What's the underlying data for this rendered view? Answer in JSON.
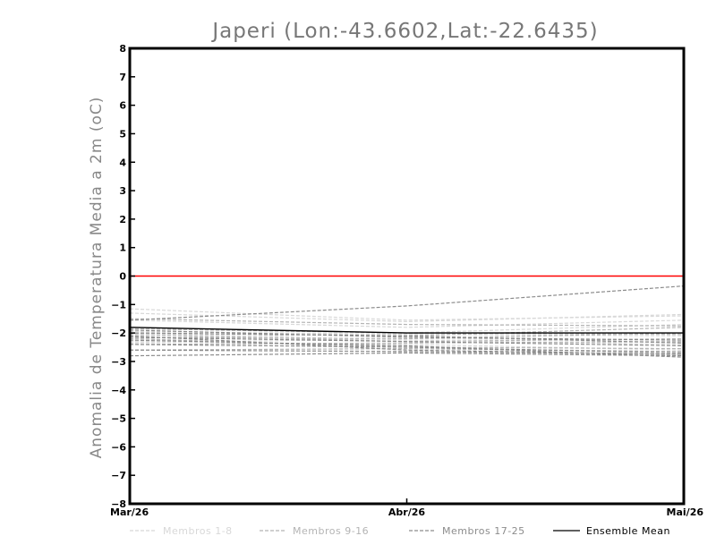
{
  "chart_data": {
    "type": "line",
    "title": "Japeri (Lon:-43.6602,Lat:-22.6435)",
    "ylabel": "Anomalia de Temperatura Media a 2m (oC)",
    "xlabel": "",
    "categories": [
      "Mar/26",
      "Abr/26",
      "Mai/26"
    ],
    "ylim": [
      -8,
      8
    ],
    "yticks": [
      -8,
      -7,
      -6,
      -5,
      -4,
      -3,
      -2,
      -1,
      0,
      1,
      2,
      3,
      4,
      5,
      6,
      7,
      8
    ],
    "zero_line_color": "#ff0000",
    "grid": false,
    "legend_position": "bottom",
    "legend": [
      {
        "label": "Membros 1-8",
        "color": "#d8d8d8",
        "dashed": true
      },
      {
        "label": "Membros 9-16",
        "color": "#b4b4b4",
        "dashed": true
      },
      {
        "label": "Membros 17-25",
        "color": "#8c8c8c",
        "dashed": true
      },
      {
        "label": "Ensemble Mean",
        "color": "#000000",
        "dashed": false
      }
    ],
    "series": [
      {
        "group": 0,
        "values": [
          -1.15,
          -1.55,
          -1.4
        ]
      },
      {
        "group": 0,
        "values": [
          -1.3,
          -1.6,
          -1.35
        ]
      },
      {
        "group": 0,
        "values": [
          -1.55,
          -1.8,
          -1.55
        ]
      },
      {
        "group": 0,
        "values": [
          -2.2,
          -2.0,
          -1.7
        ]
      },
      {
        "group": 0,
        "values": [
          -1.95,
          -2.05,
          -2.1
        ]
      },
      {
        "group": 0,
        "values": [
          -2.35,
          -2.2,
          -2.25
        ]
      },
      {
        "group": 0,
        "values": [
          -2.0,
          -2.25,
          -2.4
        ]
      },
      {
        "group": 0,
        "values": [
          -2.3,
          -2.4,
          -2.6
        ]
      },
      {
        "group": 1,
        "values": [
          -1.5,
          -1.7,
          -1.75
        ]
      },
      {
        "group": 1,
        "values": [
          -2.0,
          -2.1,
          -1.8
        ]
      },
      {
        "group": 1,
        "values": [
          -2.15,
          -2.2,
          -2.0
        ]
      },
      {
        "group": 1,
        "values": [
          -2.05,
          -2.3,
          -2.2
        ]
      },
      {
        "group": 1,
        "values": [
          -2.4,
          -2.35,
          -2.3
        ]
      },
      {
        "group": 1,
        "values": [
          -2.2,
          -2.5,
          -2.55
        ]
      },
      {
        "group": 1,
        "values": [
          -2.6,
          -2.55,
          -2.65
        ]
      },
      {
        "group": 1,
        "values": [
          -1.85,
          -2.0,
          -2.05
        ]
      },
      {
        "group": 2,
        "values": [
          -1.55,
          -1.05,
          -0.35
        ]
      },
      {
        "group": 2,
        "values": [
          -2.8,
          -2.7,
          -2.8
        ]
      },
      {
        "group": 2,
        "values": [
          -2.1,
          -2.6,
          -2.75
        ]
      },
      {
        "group": 2,
        "values": [
          -2.25,
          -2.45,
          -2.85
        ]
      },
      {
        "group": 2,
        "values": [
          -1.9,
          -2.15,
          -2.25
        ]
      },
      {
        "group": 2,
        "values": [
          -2.4,
          -2.5,
          -2.7
        ]
      },
      {
        "group": 2,
        "values": [
          -2.0,
          -2.1,
          -2.35
        ]
      },
      {
        "group": 2,
        "values": [
          -2.15,
          -2.3,
          -2.45
        ]
      },
      {
        "group": 2,
        "values": [
          -2.6,
          -2.65,
          -2.75
        ]
      },
      {
        "name": "Ensemble Mean",
        "group": 3,
        "values": [
          -1.8,
          -2.0,
          -2.0
        ]
      }
    ]
  }
}
